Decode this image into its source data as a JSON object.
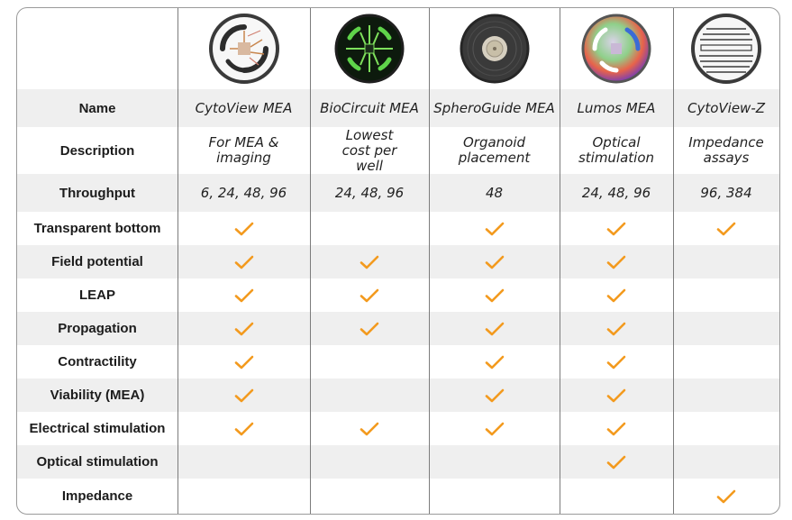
{
  "columns": [
    {
      "name": "CytoView MEA",
      "description": "For MEA & imaging",
      "throughput": "6, 24, 48, 96",
      "plate_icon": "cytoview-mea-plate-icon"
    },
    {
      "name": "BioCircuit MEA",
      "description": "Lowest cost per well",
      "throughput": "24, 48, 96",
      "plate_icon": "biocircuit-mea-plate-icon"
    },
    {
      "name": "SpheroGuide MEA",
      "description": "Organoid placement",
      "throughput": "48",
      "plate_icon": "spheroguide-mea-plate-icon"
    },
    {
      "name": "Lumos MEA",
      "description": "Optical stimulation",
      "throughput": "24, 48, 96",
      "plate_icon": "lumos-mea-plate-icon"
    },
    {
      "name": "CytoView-Z",
      "description": "Impedance assays",
      "throughput": "96, 384",
      "plate_icon": "cytoview-z-plate-icon"
    }
  ],
  "row_labels": {
    "name": "Name",
    "description": "Description",
    "throughput": "Throughput"
  },
  "features": [
    {
      "label": "Transparent bottom",
      "checks": [
        true,
        false,
        true,
        true,
        true
      ]
    },
    {
      "label": "Field potential",
      "checks": [
        true,
        true,
        true,
        true,
        false
      ]
    },
    {
      "label": "LEAP",
      "checks": [
        true,
        true,
        true,
        true,
        false
      ]
    },
    {
      "label": "Propagation",
      "checks": [
        true,
        true,
        true,
        true,
        false
      ]
    },
    {
      "label": "Contractility",
      "checks": [
        true,
        false,
        true,
        true,
        false
      ]
    },
    {
      "label": "Viability (MEA)",
      "checks": [
        true,
        false,
        true,
        true,
        false
      ]
    },
    {
      "label": "Electrical stimulation",
      "checks": [
        true,
        true,
        true,
        true,
        false
      ]
    },
    {
      "label": "Optical stimulation",
      "checks": [
        false,
        false,
        false,
        true,
        false
      ]
    },
    {
      "label": "Impedance",
      "checks": [
        false,
        false,
        false,
        false,
        true
      ]
    }
  ],
  "colors": {
    "check": "#f39a1e",
    "shade": "#efefef",
    "divider": "#7c7c7c"
  }
}
